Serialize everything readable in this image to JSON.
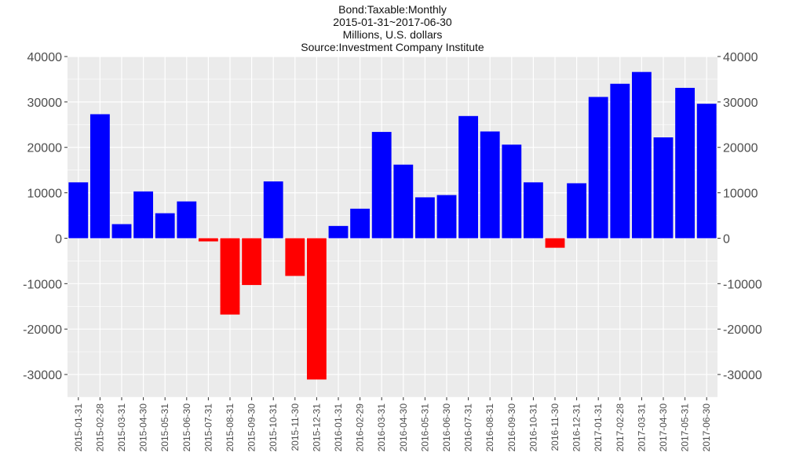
{
  "chart_data": {
    "type": "bar",
    "title": "Bond:Taxable:Monthly",
    "subtitle": [
      "2015-01-31~2017-06-30",
      "Millions, U.S. dollars",
      "Source:Investment Company Institute"
    ],
    "xlabel": "",
    "ylabel": "",
    "ylim": [
      -35000,
      40000
    ],
    "yticks": [
      40000,
      30000,
      20000,
      10000,
      0,
      -10000,
      -20000,
      -30000
    ],
    "grid": true,
    "legend": "none",
    "colors": {
      "positive": "#0000ff",
      "negative": "#ff0000",
      "panel": "#ebebeb",
      "grid": "#ffffff"
    },
    "categories": [
      "2015-01-31",
      "2015-02-28",
      "2015-03-31",
      "2015-04-30",
      "2015-05-31",
      "2015-06-30",
      "2015-07-31",
      "2015-08-31",
      "2015-09-30",
      "2015-10-31",
      "2015-11-30",
      "2015-12-31",
      "2016-01-31",
      "2016-02-29",
      "2016-03-31",
      "2016-04-30",
      "2016-05-31",
      "2016-06-30",
      "2016-07-31",
      "2016-08-31",
      "2016-09-30",
      "2016-10-31",
      "2016-11-30",
      "2016-12-31",
      "2017-01-31",
      "2017-02-28",
      "2017-03-31",
      "2017-04-30",
      "2017-05-31",
      "2017-06-30"
    ],
    "values": [
      12300,
      27300,
      3100,
      10300,
      5500,
      8100,
      -700,
      -16800,
      -10300,
      12500,
      -8300,
      -31100,
      2700,
      6500,
      23400,
      16200,
      9000,
      9500,
      26900,
      23500,
      20600,
      12300,
      -2100,
      12100,
      31100,
      34000,
      36600,
      22200,
      33100,
      29600
    ]
  }
}
